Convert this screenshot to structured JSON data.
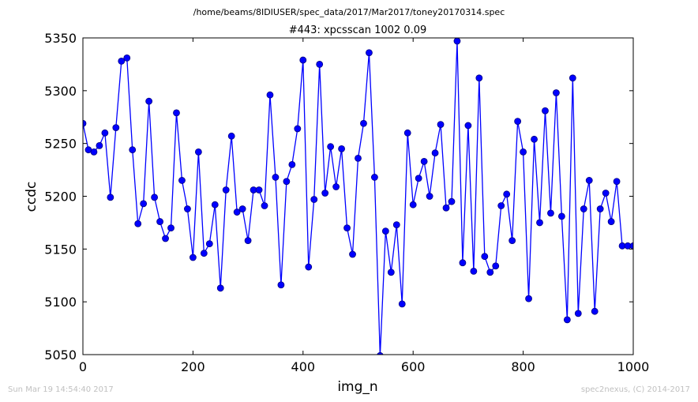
{
  "suptitle": "/home/beams/8IDIUSER/spec_data/2017/Mar2017/toney20170314.spec",
  "footer": {
    "left": "Sun Mar 19 14:54:40 2017",
    "right": "spec2nexus, (C) 2014-2017"
  },
  "colors": {
    "series": "#0000ff",
    "marker_edge": "#000080"
  },
  "chart_data": {
    "type": "line",
    "title": "#443: xpcsscan 1002 0.09",
    "xlabel": "img_n",
    "ylabel": "ccdc",
    "xlim": [
      0,
      1000
    ],
    "ylim": [
      5050,
      5350
    ],
    "xticks": [
      0,
      200,
      400,
      600,
      800,
      1000
    ],
    "yticks": [
      5050,
      5100,
      5150,
      5200,
      5250,
      5300,
      5350
    ],
    "grid": false,
    "markers": true,
    "x": [
      0,
      10,
      20,
      30,
      40,
      50,
      60,
      70,
      80,
      90,
      100,
      110,
      120,
      130,
      140,
      150,
      160,
      170,
      180,
      190,
      200,
      210,
      220,
      230,
      240,
      250,
      260,
      270,
      280,
      290,
      300,
      310,
      320,
      330,
      340,
      350,
      360,
      370,
      380,
      390,
      400,
      410,
      420,
      430,
      440,
      450,
      460,
      470,
      480,
      490,
      500,
      510,
      520,
      530,
      540,
      550,
      560,
      570,
      580,
      590,
      600,
      610,
      620,
      630,
      640,
      650,
      660,
      670,
      680,
      690,
      700,
      710,
      720,
      730,
      740,
      750,
      760,
      770,
      780,
      790,
      800,
      810,
      820,
      830,
      840,
      850,
      860,
      870,
      880,
      890,
      900,
      910,
      920,
      930,
      940,
      950,
      960,
      970,
      980,
      990,
      1000
    ],
    "y": [
      5269,
      5244,
      5242,
      5248,
      5260,
      5199,
      5265,
      5328,
      5331,
      5244,
      5174,
      5193,
      5290,
      5199,
      5176,
      5160,
      5170,
      5279,
      5215,
      5188,
      5142,
      5242,
      5146,
      5155,
      5192,
      5113,
      5206,
      5257,
      5185,
      5188,
      5158,
      5206,
      5206,
      5191,
      5296,
      5218,
      5116,
      5214,
      5230,
      5264,
      5329,
      5133,
      5197,
      5325,
      5203,
      5247,
      5209,
      5245,
      5170,
      5145,
      5236,
      5269,
      5336,
      5218,
      5049,
      5167,
      5128,
      5173,
      5098,
      5260,
      5192,
      5217,
      5233,
      5200,
      5241,
      5268,
      5189,
      5195,
      5347,
      5137,
      5267,
      5129,
      5312,
      5143,
      5128,
      5134,
      5191,
      5202,
      5158,
      5271,
      5242,
      5103,
      5254,
      5175,
      5281,
      5184,
      5298,
      5181,
      5083,
      5312,
      5089,
      5188,
      5215,
      5091,
      5188,
      5203,
      5176,
      5214,
      5153,
      5153,
      5153
    ]
  }
}
